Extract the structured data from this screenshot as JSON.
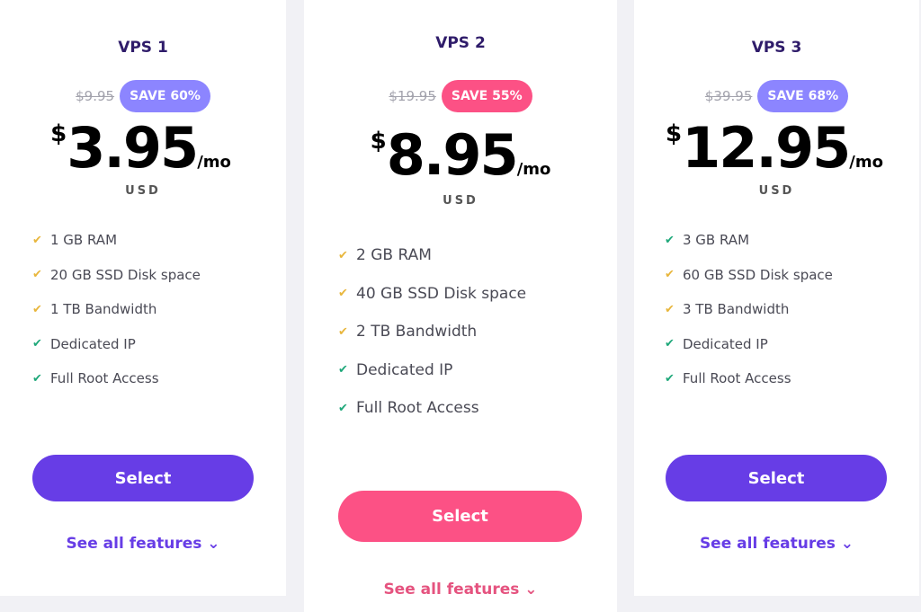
{
  "colors": {
    "purple": "#673de6",
    "purple_badge": "#8c85ff",
    "pink": "#fc5185",
    "check_yellow": "#e8b63c",
    "check_green": "#1fa87a",
    "title": "#2f1c6a"
  },
  "plans": [
    {
      "name": "VPS 1",
      "old_price": "$9.95",
      "save": "SAVE 60%",
      "currency_symbol": "$",
      "price": "3.95",
      "period": "/mo",
      "currency": "USD",
      "features": [
        {
          "text": "1 GB RAM",
          "check": "yellow"
        },
        {
          "text": "20 GB SSD Disk space",
          "check": "yellow"
        },
        {
          "text": "1 TB Bandwidth",
          "check": "yellow"
        },
        {
          "text": "Dedicated IP",
          "check": "green"
        },
        {
          "text": "Full Root Access",
          "check": "green"
        }
      ],
      "select_label": "Select",
      "see_all_label": "See all features"
    },
    {
      "name": "VPS 2",
      "old_price": "$19.95",
      "save": "SAVE 55%",
      "currency_symbol": "$",
      "price": "8.95",
      "period": "/mo",
      "currency": "USD",
      "features": [
        {
          "text": "2 GB RAM",
          "check": "yellow"
        },
        {
          "text": "40 GB SSD Disk space",
          "check": "yellow"
        },
        {
          "text": "2 TB Bandwidth",
          "check": "yellow"
        },
        {
          "text": "Dedicated IP",
          "check": "green"
        },
        {
          "text": "Full Root Access",
          "check": "green"
        }
      ],
      "select_label": "Select",
      "see_all_label": "See all features"
    },
    {
      "name": "VPS 3",
      "old_price": "$39.95",
      "save": "SAVE 68%",
      "currency_symbol": "$",
      "price": "12.95",
      "period": "/mo",
      "currency": "USD",
      "features": [
        {
          "text": "3 GB RAM",
          "check": "green"
        },
        {
          "text": "60 GB SSD Disk space",
          "check": "yellow"
        },
        {
          "text": "3 TB Bandwidth",
          "check": "yellow"
        },
        {
          "text": "Dedicated IP",
          "check": "green"
        },
        {
          "text": "Full Root Access",
          "check": "green"
        }
      ],
      "select_label": "Select",
      "see_all_label": "See all features"
    }
  ]
}
